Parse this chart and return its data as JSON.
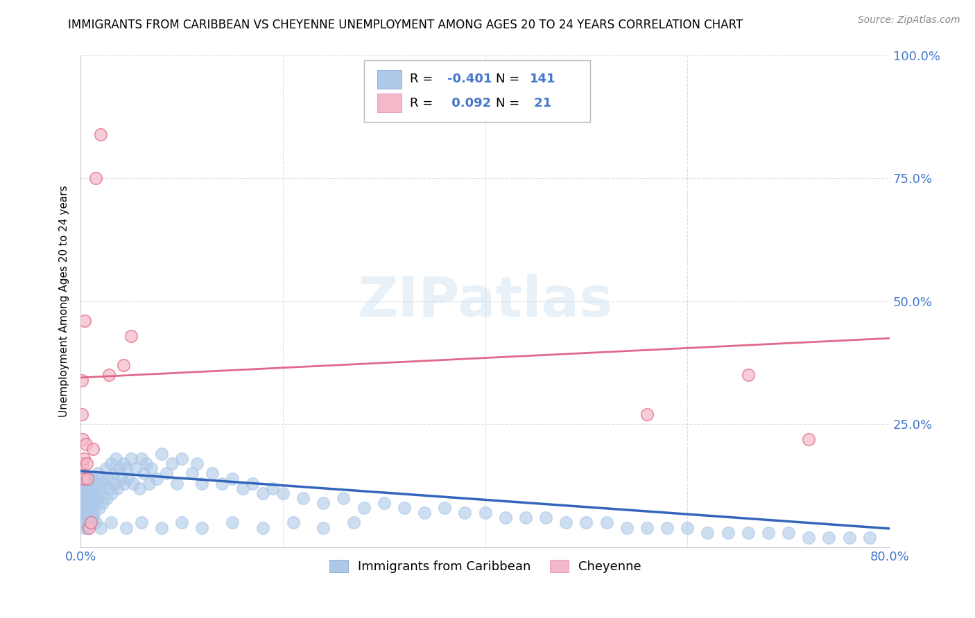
{
  "title": "IMMIGRANTS FROM CARIBBEAN VS CHEYENNE UNEMPLOYMENT AMONG AGES 20 TO 24 YEARS CORRELATION CHART",
  "source": "Source: ZipAtlas.com",
  "ylabel": "Unemployment Among Ages 20 to 24 years",
  "xlim": [
    0.0,
    0.8
  ],
  "ylim": [
    0.0,
    1.0
  ],
  "blue_R": -0.401,
  "blue_N": 141,
  "pink_R": 0.092,
  "pink_N": 21,
  "blue_color": "#adc8e8",
  "blue_line_color": "#3366bb",
  "pink_color": "#f5b8c8",
  "pink_line_color": "#e06888",
  "watermark": "ZIPatlas",
  "legend_label_blue": "Immigrants from Caribbean",
  "legend_label_pink": "Cheyenne",
  "grid_color": "#dddddd",
  "background_color": "#ffffff",
  "title_fontsize": 12,
  "axis_label_color": "#4477cc",
  "blue_line_y0": 0.155,
  "blue_line_y1": 0.038,
  "pink_line_y0": 0.345,
  "pink_line_y1": 0.425,
  "blue_scatter_x": [
    0.001,
    0.001,
    0.001,
    0.001,
    0.002,
    0.002,
    0.002,
    0.002,
    0.002,
    0.003,
    0.003,
    0.003,
    0.003,
    0.003,
    0.004,
    0.004,
    0.004,
    0.004,
    0.005,
    0.005,
    0.005,
    0.005,
    0.006,
    0.006,
    0.006,
    0.006,
    0.007,
    0.007,
    0.007,
    0.008,
    0.008,
    0.008,
    0.009,
    0.009,
    0.01,
    0.01,
    0.01,
    0.011,
    0.011,
    0.012,
    0.012,
    0.013,
    0.013,
    0.014,
    0.015,
    0.015,
    0.016,
    0.017,
    0.018,
    0.019,
    0.02,
    0.021,
    0.022,
    0.023,
    0.025,
    0.026,
    0.027,
    0.028,
    0.03,
    0.031,
    0.033,
    0.034,
    0.035,
    0.036,
    0.038,
    0.04,
    0.042,
    0.043,
    0.045,
    0.047,
    0.05,
    0.052,
    0.055,
    0.058,
    0.06,
    0.062,
    0.065,
    0.068,
    0.07,
    0.075,
    0.08,
    0.085,
    0.09,
    0.095,
    0.1,
    0.11,
    0.115,
    0.12,
    0.13,
    0.14,
    0.15,
    0.16,
    0.17,
    0.18,
    0.19,
    0.2,
    0.22,
    0.24,
    0.26,
    0.28,
    0.3,
    0.32,
    0.34,
    0.36,
    0.38,
    0.4,
    0.42,
    0.44,
    0.46,
    0.48,
    0.5,
    0.52,
    0.54,
    0.56,
    0.58,
    0.6,
    0.62,
    0.64,
    0.66,
    0.68,
    0.7,
    0.72,
    0.74,
    0.76,
    0.78,
    0.003,
    0.005,
    0.007,
    0.012,
    0.02,
    0.03,
    0.045,
    0.06,
    0.08,
    0.1,
    0.12,
    0.15,
    0.18,
    0.21,
    0.24,
    0.27
  ],
  "blue_scatter_y": [
    0.08,
    0.05,
    0.12,
    0.06,
    0.1,
    0.07,
    0.14,
    0.05,
    0.09,
    0.11,
    0.06,
    0.08,
    0.13,
    0.05,
    0.09,
    0.12,
    0.06,
    0.07,
    0.1,
    0.08,
    0.13,
    0.05,
    0.09,
    0.11,
    0.06,
    0.14,
    0.08,
    0.1,
    0.05,
    0.12,
    0.07,
    0.09,
    0.11,
    0.06,
    0.14,
    0.08,
    0.1,
    0.12,
    0.06,
    0.09,
    0.14,
    0.07,
    0.11,
    0.09,
    0.13,
    0.05,
    0.1,
    0.15,
    0.08,
    0.12,
    0.11,
    0.14,
    0.09,
    0.13,
    0.16,
    0.1,
    0.14,
    0.12,
    0.17,
    0.11,
    0.15,
    0.13,
    0.18,
    0.12,
    0.16,
    0.14,
    0.17,
    0.13,
    0.16,
    0.14,
    0.18,
    0.13,
    0.16,
    0.12,
    0.18,
    0.15,
    0.17,
    0.13,
    0.16,
    0.14,
    0.19,
    0.15,
    0.17,
    0.13,
    0.18,
    0.15,
    0.17,
    0.13,
    0.15,
    0.13,
    0.14,
    0.12,
    0.13,
    0.11,
    0.12,
    0.11,
    0.1,
    0.09,
    0.1,
    0.08,
    0.09,
    0.08,
    0.07,
    0.08,
    0.07,
    0.07,
    0.06,
    0.06,
    0.06,
    0.05,
    0.05,
    0.05,
    0.04,
    0.04,
    0.04,
    0.04,
    0.03,
    0.03,
    0.03,
    0.03,
    0.03,
    0.02,
    0.02,
    0.02,
    0.02,
    0.04,
    0.06,
    0.04,
    0.06,
    0.04,
    0.05,
    0.04,
    0.05,
    0.04,
    0.05,
    0.04,
    0.05,
    0.04,
    0.05,
    0.04,
    0.05
  ],
  "pink_scatter_x": [
    0.001,
    0.001,
    0.002,
    0.002,
    0.003,
    0.003,
    0.004,
    0.005,
    0.006,
    0.007,
    0.008,
    0.01,
    0.012,
    0.015,
    0.02,
    0.028,
    0.042,
    0.56,
    0.66,
    0.72,
    0.05
  ],
  "pink_scatter_y": [
    0.34,
    0.27,
    0.22,
    0.17,
    0.18,
    0.14,
    0.46,
    0.21,
    0.17,
    0.14,
    0.04,
    0.05,
    0.2,
    0.75,
    0.84,
    0.35,
    0.37,
    0.27,
    0.35,
    0.22,
    0.43
  ]
}
